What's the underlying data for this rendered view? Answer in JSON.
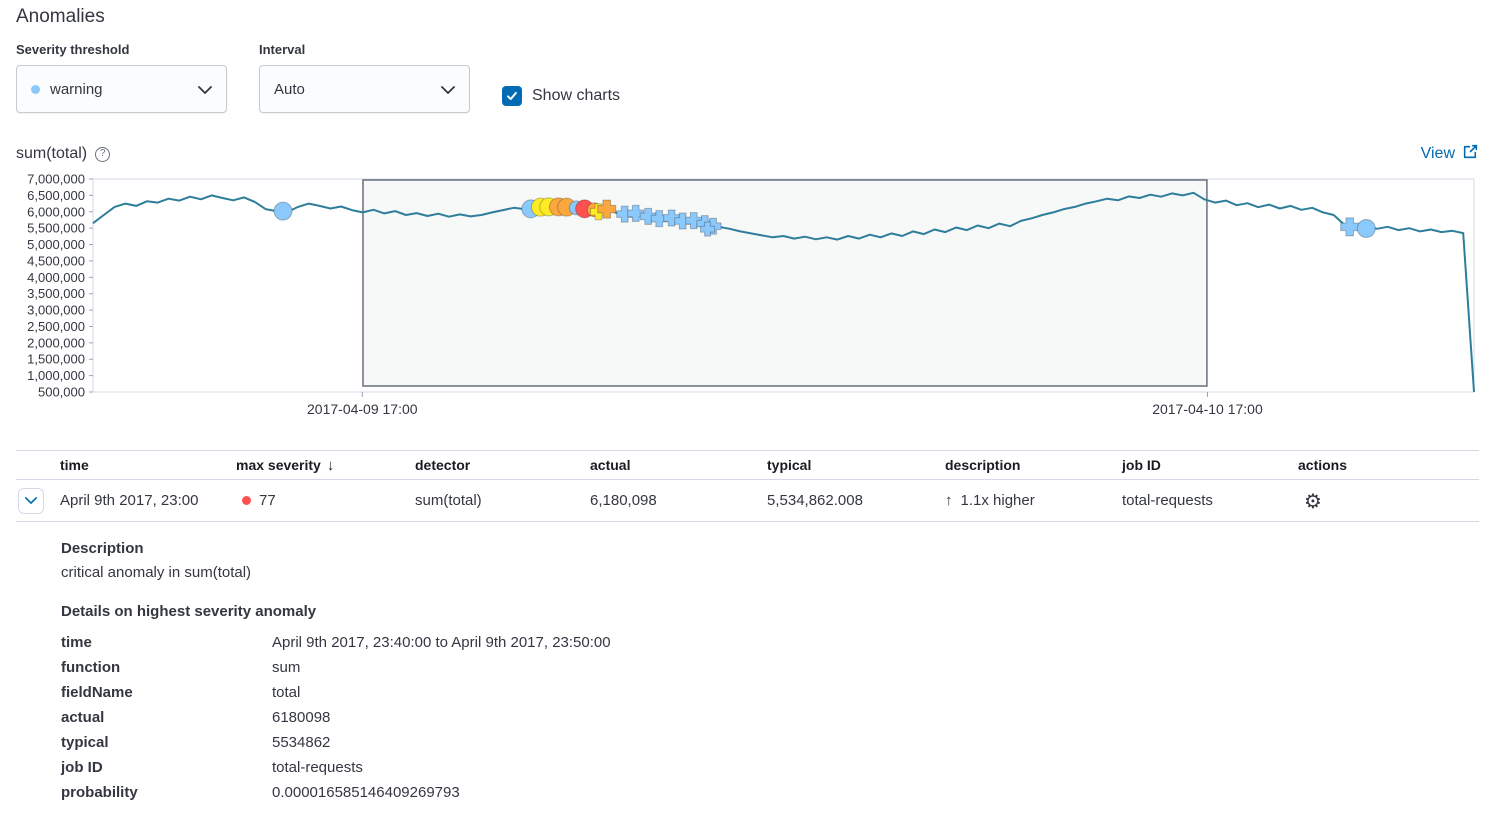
{
  "page": {
    "title": "Anomalies"
  },
  "controls": {
    "severity_label": "Severity threshold",
    "severity_value": "warning",
    "severity_dot_color": "#8bc8fb",
    "interval_label": "Interval",
    "interval_value": "Auto",
    "show_charts_label": "Show charts",
    "show_charts_checked": true
  },
  "chart": {
    "title": "sum(total)",
    "view_label": "View"
  },
  "chart_data": {
    "type": "line",
    "title": "sum(total)",
    "ylim": [
      500000,
      7000000
    ],
    "line_color": "#2e7e9b",
    "severity_colors": {
      "critical": "#fe5050",
      "major": "#fba740",
      "minor": "#fdec25",
      "warning": "#8bc8fb"
    },
    "yticks": [
      {
        "value": 7000000,
        "label": "7,000,000"
      },
      {
        "value": 6500000,
        "label": "6,500,000"
      },
      {
        "value": 6000000,
        "label": "6,000,000"
      },
      {
        "value": 5500000,
        "label": "5,500,000"
      },
      {
        "value": 5000000,
        "label": "5,000,000"
      },
      {
        "value": 4500000,
        "label": "4,500,000"
      },
      {
        "value": 4000000,
        "label": "4,000,000"
      },
      {
        "value": 3500000,
        "label": "3,500,000"
      },
      {
        "value": 3000000,
        "label": "3,000,000"
      },
      {
        "value": 2500000,
        "label": "2,500,000"
      },
      {
        "value": 2000000,
        "label": "2,000,000"
      },
      {
        "value": 1500000,
        "label": "1,500,000"
      },
      {
        "value": 1000000,
        "label": "1,000,000"
      },
      {
        "value": 500000,
        "label": "500,000"
      }
    ],
    "xticks": [
      {
        "frac": 0.195,
        "label": "2017-04-09 17:00"
      },
      {
        "frac": 0.807,
        "label": "2017-04-10 17:00"
      }
    ],
    "selection": {
      "start_frac": 0.1955,
      "end_frac": 0.8066
    },
    "series": [
      {
        "name": "sum(total)",
        "values": [
          5650000,
          5900000,
          6150000,
          6250000,
          6180000,
          6320000,
          6280000,
          6400000,
          6340000,
          6460000,
          6380000,
          6500000,
          6420000,
          6350000,
          6440000,
          6300000,
          6080000,
          6020000,
          5990000,
          6150000,
          6250000,
          6180000,
          6100000,
          6160000,
          6050000,
          5980000,
          6060000,
          5950000,
          6020000,
          5900000,
          5960000,
          5870000,
          5940000,
          5850000,
          5920000,
          5860000,
          5900000,
          5980000,
          6050000,
          6120000,
          6080000,
          6150000,
          6180000,
          6120000,
          6160000,
          6100000,
          6050000,
          5980000,
          6020000,
          5920000,
          5960000,
          5850000,
          5780000,
          5820000,
          5700000,
          5740000,
          5620000,
          5660000,
          5540000,
          5480000,
          5400000,
          5340000,
          5280000,
          5220000,
          5260000,
          5180000,
          5240000,
          5160000,
          5220000,
          5150000,
          5260000,
          5180000,
          5300000,
          5220000,
          5340000,
          5260000,
          5400000,
          5320000,
          5460000,
          5380000,
          5520000,
          5440000,
          5580000,
          5500000,
          5640000,
          5560000,
          5720000,
          5800000,
          5900000,
          5980000,
          6080000,
          6150000,
          6250000,
          6320000,
          6400000,
          6350000,
          6470000,
          6420000,
          6520000,
          6460000,
          6560000,
          6500000,
          6580000,
          6380000,
          6280000,
          6340000,
          6200000,
          6260000,
          6140000,
          6220000,
          6100000,
          6180000,
          6060000,
          6120000,
          5980000,
          5900000,
          5600000,
          5520000,
          5560000,
          5480000,
          5540000,
          5440000,
          5500000,
          5400000,
          5460000,
          5380000,
          5420000,
          5350000,
          500000
        ]
      }
    ],
    "markers": [
      {
        "type": "circle",
        "severity": "warning",
        "frac": 0.1376,
        "value": 6020000,
        "r": 9
      },
      {
        "type": "circle",
        "severity": "warning",
        "frac": 0.317,
        "value": 6090000,
        "r": 9
      },
      {
        "type": "circle",
        "severity": "minor",
        "frac": 0.324,
        "value": 6140000,
        "r": 9
      },
      {
        "type": "circle",
        "severity": "minor",
        "frac": 0.33,
        "value": 6150000,
        "r": 9
      },
      {
        "type": "circle",
        "severity": "major",
        "frac": 0.337,
        "value": 6150000,
        "r": 9
      },
      {
        "type": "circle",
        "severity": "major",
        "frac": 0.343,
        "value": 6140000,
        "r": 9
      },
      {
        "type": "circle",
        "severity": "warning",
        "frac": 0.35,
        "value": 6120000,
        "r": 7
      },
      {
        "type": "circle",
        "severity": "critical",
        "frac": 0.356,
        "value": 6090000,
        "r": 9
      },
      {
        "type": "circle",
        "severity": "major",
        "frac": 0.363,
        "value": 6060000,
        "r": 7
      },
      {
        "type": "cross",
        "severity": "minor",
        "frac": 0.366,
        "value": 6000000,
        "r": 8
      },
      {
        "type": "cross",
        "severity": "major",
        "frac": 0.372,
        "value": 6080000,
        "r": 9
      },
      {
        "type": "cross",
        "severity": "warning",
        "frac": 0.385,
        "value": 5930000,
        "r": 8
      },
      {
        "type": "cross",
        "severity": "warning",
        "frac": 0.393,
        "value": 5950000,
        "r": 8
      },
      {
        "type": "cross",
        "severity": "warning",
        "frac": 0.402,
        "value": 5860000,
        "r": 8
      },
      {
        "type": "cross",
        "severity": "warning",
        "frac": 0.41,
        "value": 5790000,
        "r": 8
      },
      {
        "type": "cross",
        "severity": "warning",
        "frac": 0.419,
        "value": 5810000,
        "r": 8
      },
      {
        "type": "cross",
        "severity": "warning",
        "frac": 0.427,
        "value": 5720000,
        "r": 8
      },
      {
        "type": "cross",
        "severity": "warning",
        "frac": 0.435,
        "value": 5730000,
        "r": 8
      },
      {
        "type": "cross",
        "severity": "warning",
        "frac": 0.443,
        "value": 5640000,
        "r": 8
      },
      {
        "type": "cross",
        "severity": "warning",
        "frac": 0.449,
        "value": 5560000,
        "r": 8
      },
      {
        "type": "cross",
        "severity": "warning",
        "frac": 0.445,
        "value": 5470000,
        "r": 7
      },
      {
        "type": "cross",
        "severity": "warning",
        "frac": 0.91,
        "value": 5540000,
        "r": 9
      },
      {
        "type": "circle",
        "severity": "warning",
        "frac": 0.922,
        "value": 5490000,
        "r": 9
      }
    ]
  },
  "table": {
    "headers": [
      "time",
      "max severity",
      "detector",
      "actual",
      "typical",
      "description",
      "job ID",
      "actions"
    ],
    "sort": {
      "column": "max severity",
      "direction": "desc",
      "arrow": "↓"
    },
    "row": {
      "time": "April 9th 2017, 23:00",
      "severity": "77",
      "severity_color": "#fe5050",
      "detector": "sum(total)",
      "actual": "6,180,098",
      "typical": "5,534,862.008",
      "description_arrow": "↑",
      "description": "1.1x higher",
      "job_id": "total-requests"
    }
  },
  "details": {
    "description_heading": "Description",
    "description_text": "critical anomaly in sum(total)",
    "details_heading": "Details on highest severity anomaly",
    "fields": [
      {
        "label": "time",
        "value": "April 9th 2017, 23:40:00 to April 9th 2017, 23:50:00"
      },
      {
        "label": "function",
        "value": "sum"
      },
      {
        "label": "fieldName",
        "value": "total"
      },
      {
        "label": "actual",
        "value": "6180098"
      },
      {
        "label": "typical",
        "value": "5534862"
      },
      {
        "label": "job ID",
        "value": "total-requests"
      },
      {
        "label": "probability",
        "value": "0.000016585146409269793"
      }
    ]
  }
}
